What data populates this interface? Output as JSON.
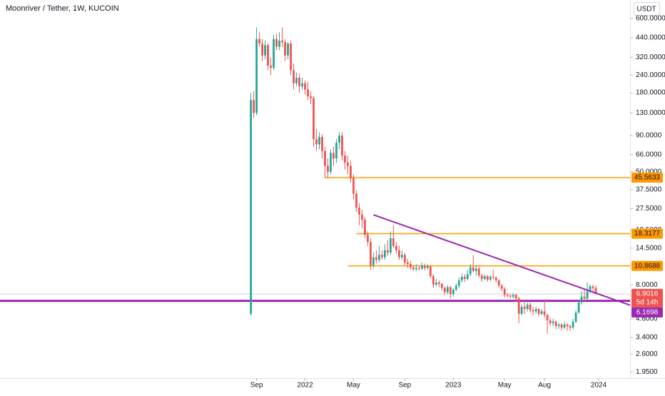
{
  "chart_data": {
    "type": "candlestick",
    "title": "Moonriver / Tether, 1W, KUCOIN",
    "currency_button": "USDT",
    "up_color": "#26a69a",
    "down_color": "#ef5350",
    "log_scale": true,
    "ylim": [
      1.76,
      811
    ],
    "yticks": [
      {
        "value": 600,
        "label": "600.0000"
      },
      {
        "value": 440,
        "label": "440.0000"
      },
      {
        "value": 320,
        "label": "320.0000"
      },
      {
        "value": 240,
        "label": "240.0000"
      },
      {
        "value": 180,
        "label": "180.0000"
      },
      {
        "value": 130,
        "label": "130.0000"
      },
      {
        "value": 90,
        "label": "90.0000"
      },
      {
        "value": 66,
        "label": "66.0000"
      },
      {
        "value": 50,
        "label": "50.0000"
      },
      {
        "value": 37.5,
        "label": "37.5000"
      },
      {
        "value": 27.5,
        "label": "27.5000"
      },
      {
        "value": 19.5,
        "label": "19.5000"
      },
      {
        "value": 14.5,
        "label": "14.5000"
      },
      {
        "value": 8,
        "label": "8.0000"
      },
      {
        "value": 4.6,
        "label": "4.6000"
      },
      {
        "value": 3.4,
        "label": "3.4000"
      },
      {
        "value": 2.6,
        "label": "2.6000"
      },
      {
        "value": 1.95,
        "label": "1.9500"
      }
    ],
    "xlim": [
      -88,
      133
    ],
    "xticks": [
      {
        "value": 2,
        "label": "Sep"
      },
      {
        "value": 19,
        "label": "2022"
      },
      {
        "value": 36,
        "label": "May"
      },
      {
        "value": 54,
        "label": "Sep"
      },
      {
        "value": 71,
        "label": "2023"
      },
      {
        "value": 89,
        "label": "May"
      },
      {
        "value": 103,
        "label": "Aug"
      },
      {
        "value": 122,
        "label": "2024"
      }
    ],
    "candles": [
      [
        5,
        180,
        4.85,
        160
      ],
      [
        160,
        185,
        120,
        130
      ],
      [
        130,
        520,
        125,
        430
      ],
      [
        430,
        480,
        380,
        400
      ],
      [
        400,
        430,
        300,
        330
      ],
      [
        330,
        420,
        310,
        390
      ],
      [
        390,
        400,
        260,
        280
      ],
      [
        280,
        320,
        240,
        270
      ],
      [
        270,
        460,
        260,
        430
      ],
      [
        430,
        470,
        360,
        380
      ],
      [
        380,
        480,
        360,
        420
      ],
      [
        420,
        520,
        380,
        410
      ],
      [
        410,
        430,
        300,
        330
      ],
      [
        330,
        410,
        310,
        400
      ],
      [
        400,
        420,
        240,
        260
      ],
      [
        260,
        290,
        190,
        210
      ],
      [
        210,
        250,
        200,
        230
      ],
      [
        230,
        245,
        180,
        200
      ],
      [
        200,
        230,
        190,
        210
      ],
      [
        210,
        220,
        175,
        190
      ],
      [
        190,
        215,
        160,
        170
      ],
      [
        170,
        185,
        150,
        165
      ],
      [
        165,
        170,
        75,
        85
      ],
      [
        85,
        100,
        70,
        78
      ],
      [
        78,
        95,
        72,
        88
      ],
      [
        88,
        92,
        62,
        70
      ],
      [
        70,
        75,
        45,
        55
      ],
      [
        55,
        62,
        45,
        50
      ],
      [
        50,
        72,
        48,
        68
      ],
      [
        68,
        75,
        55,
        62
      ],
      [
        62,
        85,
        58,
        80
      ],
      [
        80,
        95,
        72,
        90
      ],
      [
        90,
        95,
        60,
        65
      ],
      [
        65,
        70,
        52,
        58
      ],
      [
        58,
        65,
        48,
        55
      ],
      [
        55,
        60,
        42,
        45
      ],
      [
        45,
        48,
        32,
        35
      ],
      [
        35,
        37,
        26,
        28
      ],
      [
        28,
        30,
        21,
        25
      ],
      [
        25,
        27,
        20,
        23
      ],
      [
        23,
        24,
        17,
        18
      ],
      [
        18,
        19,
        15,
        16
      ],
      [
        16,
        17,
        10.2,
        11
      ],
      [
        11,
        13.5,
        10.5,
        12.5
      ],
      [
        12.5,
        14,
        11.3,
        12
      ],
      [
        12,
        15,
        11.5,
        13
      ],
      [
        13,
        14,
        12,
        12.5
      ],
      [
        12.5,
        15.5,
        12,
        14
      ],
      [
        14,
        16.5,
        12.8,
        13.5
      ],
      [
        13.5,
        19,
        13,
        17
      ],
      [
        17,
        21,
        14.5,
        15
      ],
      [
        15,
        16,
        13.2,
        14
      ],
      [
        14,
        15,
        12,
        12.5
      ],
      [
        12.5,
        14,
        12,
        13
      ],
      [
        13,
        13.5,
        11,
        11.5
      ],
      [
        11.5,
        12.2,
        10.5,
        11.2
      ],
      [
        11.2,
        11.8,
        10.2,
        10.6
      ],
      [
        10.6,
        11,
        10,
        10.3
      ],
      [
        10.3,
        11.2,
        10,
        10.5
      ],
      [
        10.5,
        11,
        10.1,
        10.4
      ],
      [
        10.4,
        11.5,
        10.2,
        10.9
      ],
      [
        10.9,
        11.3,
        10.1,
        10.5
      ],
      [
        10.5,
        11.2,
        10.2,
        10.8
      ],
      [
        10.8,
        11,
        8.9,
        9.2
      ],
      [
        9.2,
        9.5,
        7.6,
        8
      ],
      [
        8,
        8.8,
        7.8,
        8.3
      ],
      [
        8.3,
        8.6,
        7.7,
        8.1
      ],
      [
        8.1,
        8.3,
        7.3,
        7.6
      ],
      [
        7.6,
        7.8,
        6.8,
        7.1
      ],
      [
        7.1,
        8,
        6.9,
        7.7
      ],
      [
        7.7,
        7.9,
        6.4,
        6.9
      ],
      [
        6.9,
        7.6,
        6.6,
        7.4
      ],
      [
        7.4,
        8.2,
        7.2,
        7.9
      ],
      [
        7.9,
        9,
        7.6,
        8.6
      ],
      [
        8.6,
        9.6,
        8.3,
        9.1
      ],
      [
        9.1,
        9.5,
        8.4,
        8.8
      ],
      [
        8.8,
        10.2,
        8.6,
        9.5
      ],
      [
        9.5,
        11.2,
        9.2,
        10.6
      ],
      [
        10.6,
        13,
        9.8,
        10
      ],
      [
        10,
        11,
        9.3,
        10.4
      ],
      [
        10.4,
        10.8,
        9,
        9.3
      ],
      [
        9.3,
        9.6,
        8.4,
        8.8
      ],
      [
        8.8,
        9.5,
        8.6,
        9.2
      ],
      [
        9.2,
        9.4,
        8.4,
        8.7
      ],
      [
        8.7,
        9.4,
        8.5,
        9.1
      ],
      [
        9.1,
        10.2,
        8.7,
        9
      ],
      [
        9,
        9.2,
        8.3,
        8.6
      ],
      [
        8.6,
        8.8,
        7.6,
        7.9
      ],
      [
        7.9,
        8.1,
        7.2,
        7.5
      ],
      [
        7.5,
        7.7,
        6.5,
        6.8
      ],
      [
        6.8,
        7,
        6.5,
        6.7
      ],
      [
        6.7,
        6.9,
        6.4,
        6.6
      ],
      [
        6.6,
        7,
        6.4,
        6.8
      ],
      [
        6.8,
        6.9,
        6.1,
        6.4
      ],
      [
        6.4,
        6.6,
        4.3,
        5
      ],
      [
        5,
        5.8,
        4.9,
        5.6
      ],
      [
        5.6,
        6.2,
        5,
        5.4
      ],
      [
        5.4,
        6,
        5.2,
        5.8
      ],
      [
        5.8,
        6,
        5.1,
        5.3
      ],
      [
        5.3,
        5.6,
        4.9,
        5.2
      ],
      [
        5.2,
        5.6,
        5,
        5.4
      ],
      [
        5.4,
        5.5,
        4.8,
        5
      ],
      [
        5,
        5.4,
        4.9,
        5.2
      ],
      [
        5.2,
        6.3,
        4.7,
        4.9
      ],
      [
        4.9,
        5,
        3.6,
        4.5
      ],
      [
        4.5,
        4.7,
        4.1,
        4.3
      ],
      [
        4.3,
        4.6,
        4.1,
        4.4
      ],
      [
        4.4,
        4.5,
        3.9,
        4.1
      ],
      [
        4.1,
        4.3,
        3.9,
        4.2
      ],
      [
        4.2,
        4.3,
        3.8,
        4
      ],
      [
        4,
        4.4,
        3.9,
        4.2
      ],
      [
        4.2,
        4.3,
        3.8,
        4.1
      ],
      [
        4.1,
        4.2,
        3.8,
        4
      ],
      [
        4,
        4.6,
        3.9,
        4.4
      ],
      [
        4.4,
        5.3,
        4.3,
        5.1
      ],
      [
        5.1,
        6.2,
        5,
        6
      ],
      [
        6,
        7.2,
        5.8,
        6.6
      ],
      [
        6.6,
        7.5,
        6.1,
        6.4
      ],
      [
        6.4,
        8.3,
        6.2,
        7.2
      ],
      [
        7.2,
        8.1,
        7,
        7.8
      ],
      [
        7.8,
        8,
        7.2,
        7.6
      ],
      [
        7.6,
        7.9,
        6.8,
        6.9016
      ]
    ],
    "levels": [
      {
        "value": 45.5633,
        "from": 26,
        "color": "#ff9800"
      },
      {
        "value": 18.3177,
        "from": 37,
        "color": "#ff9800"
      },
      {
        "value": 10.8688,
        "from": 34,
        "color": "#ff9800"
      }
    ],
    "support": {
      "value": 6.1698,
      "color": "#9c27b0"
    },
    "trendline": {
      "points": [
        [
          43,
          24.9
        ],
        [
          133,
          5.75
        ]
      ],
      "color": "#9c27b0"
    },
    "last_price": {
      "value": 6.9016,
      "countdown": "5d 14h",
      "color": "#ef5350"
    }
  }
}
